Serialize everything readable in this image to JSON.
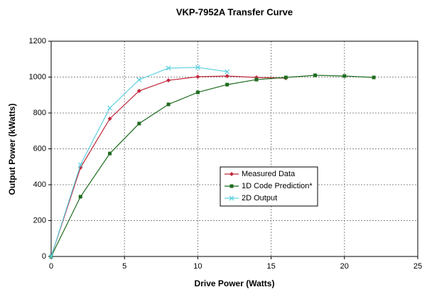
{
  "chart_data": {
    "type": "line",
    "title": "VKP-7952A Transfer Curve",
    "xlabel": "Drive Power (Watts)",
    "ylabel": "Output Power (kWatts)",
    "xlim": [
      0,
      25
    ],
    "xticks": [
      0,
      5,
      10,
      15,
      20,
      25
    ],
    "ylim": [
      0,
      1200
    ],
    "yticks": [
      0,
      200,
      400,
      600,
      800,
      1000,
      1200
    ],
    "grid": true,
    "legend": "center",
    "series": [
      {
        "name": "Measured Data",
        "color": "#c0283c",
        "marker": "diamond",
        "x": [
          0,
          2,
          4,
          6,
          8,
          10,
          12,
          14,
          16
        ],
        "values": [
          0,
          495,
          768,
          923,
          982,
          1002,
          1006,
          998,
          994
        ]
      },
      {
        "name": "1D Code Prediction*",
        "color": "#1e6b1e",
        "marker": "square",
        "x": [
          0,
          2,
          4,
          6,
          8,
          10,
          12,
          14,
          16,
          18,
          20,
          22
        ],
        "values": [
          0,
          333,
          574,
          741,
          848,
          915,
          958,
          986,
          998,
          1010,
          1006,
          998
        ]
      },
      {
        "name": "2D Output",
        "color": "#5fd0e0",
        "marker": "x",
        "x": [
          0,
          2,
          4,
          6,
          8,
          10,
          12
        ],
        "values": [
          0,
          511,
          828,
          985,
          1050,
          1054,
          1030
        ]
      }
    ]
  }
}
